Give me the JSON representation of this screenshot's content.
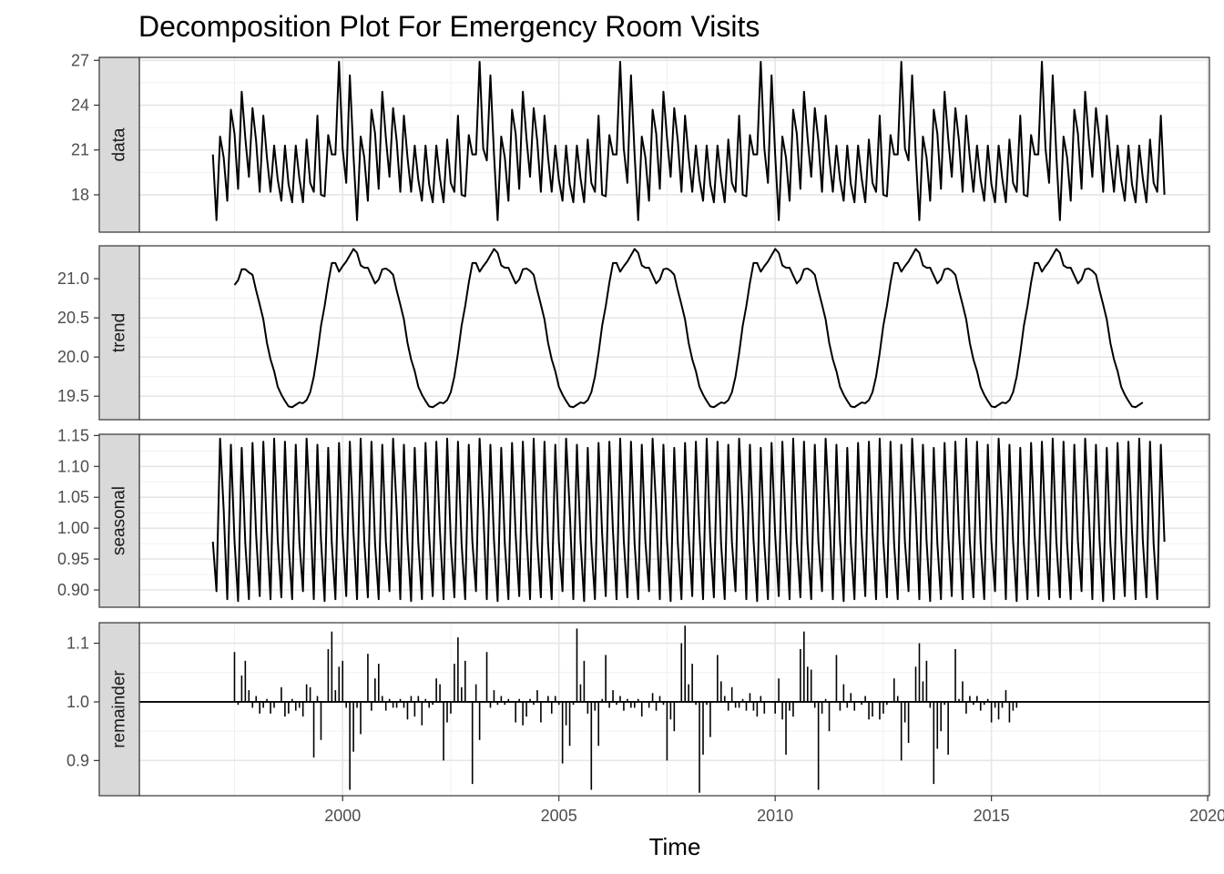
{
  "chart_data": {
    "type": "line",
    "title": "Decomposition Plot For Emergency Room Visits",
    "xlabel": "Time",
    "x_ticks": [
      2000,
      2005,
      2010,
      2015,
      2020
    ],
    "x_tick_labels": [
      "2000",
      "2005",
      "2010",
      "2015",
      "2020"
    ],
    "xlim": [
      1995.3,
      2020.04
    ],
    "grid": true,
    "panels": [
      {
        "name": "data",
        "type": "line",
        "ylim": [
          15.5,
          27.2
        ],
        "y_ticks": [
          18,
          21,
          24,
          27
        ],
        "y_tick_labels": [
          "18",
          "21",
          "24",
          "27"
        ],
        "x_start": 1997.0,
        "step": 0.0833333,
        "values": [
          20.7,
          16.3,
          21.9,
          20.5,
          17.6,
          23.7,
          22.1,
          18.4,
          24.9,
          21.8,
          19.2,
          23.8,
          21.6,
          18.2,
          23.3,
          20.5,
          18.2,
          21.3,
          19.0,
          17.6,
          21.3,
          18.7,
          17.5,
          21.3,
          19.1,
          17.5,
          21.7,
          18.8,
          18.2,
          23.3,
          18.0,
          17.9,
          22.0,
          20.7,
          20.7,
          26.9,
          21.1,
          18.8,
          26.0,
          20.7,
          16.3,
          21.9,
          20.5,
          17.6,
          23.7,
          22.1,
          18.4,
          24.9,
          21.8,
          19.2,
          23.8,
          21.6,
          18.2,
          23.3,
          20.5,
          18.2,
          21.3,
          19.0,
          17.6,
          21.3,
          18.7,
          17.5,
          21.3,
          19.1,
          17.5,
          21.7,
          18.8,
          18.2,
          23.3,
          18.0,
          17.9,
          22.0,
          20.7,
          20.7,
          26.9,
          21.1,
          20.3,
          26.0,
          20.7,
          16.3,
          21.9,
          20.5,
          17.6,
          23.7,
          22.1,
          18.4,
          24.9,
          21.8,
          19.2,
          23.8,
          21.6,
          18.2,
          23.3,
          20.5,
          18.2,
          21.3,
          19.0,
          17.6,
          21.3,
          18.7,
          17.5,
          21.3,
          19.1,
          17.5,
          21.7,
          18.8,
          18.2,
          23.3,
          18.0,
          17.9,
          22.0,
          20.7,
          20.7,
          26.9,
          21.1,
          18.8,
          26.0,
          20.7,
          16.3,
          21.9,
          20.5,
          17.6,
          23.7,
          22.1,
          18.4,
          24.9,
          21.8,
          19.2,
          23.8,
          21.6,
          18.2,
          23.3,
          20.5,
          18.2,
          21.3,
          19.0,
          17.6,
          21.3,
          18.7,
          17.5,
          21.3,
          19.1,
          17.5,
          21.7,
          18.8,
          18.2,
          23.3,
          18.0,
          17.9,
          22.0,
          20.7,
          20.7,
          26.9,
          21.1,
          18.8,
          26.0,
          20.7,
          16.3,
          21.9,
          20.5,
          17.6,
          23.7,
          22.1,
          18.4,
          24.9,
          21.8,
          19.2,
          23.8,
          21.6,
          18.2,
          23.3,
          20.5,
          18.2,
          21.3,
          19.0,
          17.6,
          21.3,
          18.7,
          17.5,
          21.3,
          19.1,
          17.5,
          21.7,
          18.8,
          18.2,
          23.3,
          18.0,
          17.9,
          22.0,
          20.7,
          20.7,
          26.9,
          21.1,
          20.3,
          26.0,
          20.7,
          16.3,
          21.9,
          20.5,
          17.6,
          23.7,
          22.1,
          18.4,
          24.9,
          21.8,
          19.2,
          23.8,
          21.6,
          18.2,
          23.3,
          20.5,
          18.2,
          21.3,
          19.0,
          17.6,
          21.3,
          18.7,
          17.5,
          21.3,
          19.1,
          17.5,
          21.7,
          18.8,
          18.2,
          23.3,
          18.0,
          17.9,
          22.0,
          20.7,
          20.7,
          26.9,
          21.1,
          18.8,
          26.0,
          20.7,
          16.3,
          21.9,
          20.5,
          17.6,
          23.7,
          22.1,
          18.4,
          24.9,
          21.8,
          19.2,
          23.8,
          21.6,
          18.2,
          23.3,
          20.5,
          18.2,
          21.3,
          19.0,
          17.6,
          21.3,
          18.7,
          17.5,
          21.3,
          19.1,
          17.5,
          21.7,
          18.8,
          18.2,
          23.3,
          18.0
        ]
      },
      {
        "name": "trend",
        "type": "line",
        "ylim": [
          19.2,
          21.42
        ],
        "y_ticks": [
          19.5,
          20.0,
          20.5,
          21.0
        ],
        "y_tick_labels": [
          "19.5",
          "20.0",
          "20.5",
          "21.0"
        ],
        "x_start": 1997.5,
        "step": 0.0833333,
        "values": [
          20.92,
          20.98,
          21.12,
          21.12,
          21.08,
          21.05,
          20.85,
          20.67,
          20.48,
          20.18,
          19.97,
          19.82,
          19.62,
          19.52,
          19.44,
          19.37,
          19.36,
          19.39,
          19.42,
          19.41,
          19.45,
          19.55,
          19.75,
          20.05,
          20.4,
          20.65,
          20.95,
          21.2,
          21.2,
          21.09,
          21.16,
          21.22,
          21.3,
          21.38,
          21.33,
          21.17,
          21.14,
          21.14,
          21.04,
          20.94,
          20.99,
          21.12,
          21.13,
          21.1,
          21.05,
          20.85,
          20.67,
          20.48,
          20.18,
          19.97,
          19.82,
          19.62,
          19.52,
          19.44,
          19.37,
          19.36,
          19.39,
          19.42,
          19.41,
          19.45,
          19.55,
          19.75,
          20.05,
          20.4,
          20.65,
          20.95,
          21.2,
          21.2,
          21.09,
          21.16,
          21.22,
          21.3,
          21.38,
          21.33,
          21.17,
          21.14,
          21.14,
          21.04,
          20.94,
          20.99,
          21.12,
          21.13,
          21.1,
          21.05,
          20.85,
          20.67,
          20.48,
          20.18,
          19.97,
          19.82,
          19.62,
          19.52,
          19.44,
          19.37,
          19.36,
          19.39,
          19.42,
          19.41,
          19.45,
          19.55,
          19.75,
          20.05,
          20.4,
          20.65,
          20.95,
          21.2,
          21.2,
          21.09,
          21.16,
          21.22,
          21.3,
          21.38,
          21.33,
          21.17,
          21.14,
          21.14,
          21.04,
          20.94,
          20.99,
          21.12,
          21.13,
          21.1,
          21.05,
          20.85,
          20.67,
          20.48,
          20.18,
          19.97,
          19.82,
          19.62,
          19.52,
          19.44,
          19.37,
          19.36,
          19.39,
          19.42,
          19.41,
          19.45,
          19.55,
          19.75,
          20.05,
          20.4,
          20.65,
          20.95,
          21.2,
          21.2,
          21.09,
          21.16,
          21.22,
          21.3,
          21.38,
          21.33,
          21.17,
          21.14,
          21.14,
          21.04,
          20.94,
          20.99,
          21.12,
          21.13,
          21.1,
          21.05,
          20.85,
          20.67,
          20.48,
          20.18,
          19.97,
          19.82,
          19.62,
          19.52,
          19.44,
          19.37,
          19.36,
          19.39,
          19.42,
          19.41,
          19.45,
          19.55,
          19.75,
          20.05,
          20.4,
          20.65,
          20.95,
          21.2,
          21.2,
          21.09,
          21.16,
          21.22,
          21.3,
          21.38,
          21.33,
          21.17,
          21.14,
          21.14,
          21.04,
          20.94,
          20.99,
          21.12,
          21.13,
          21.1,
          21.05,
          20.85,
          20.67,
          20.48,
          20.18,
          19.97,
          19.82,
          19.62,
          19.52,
          19.44,
          19.37,
          19.36,
          19.39,
          19.42,
          19.41,
          19.45,
          19.55,
          19.75,
          20.05,
          20.4,
          20.65,
          20.95,
          21.2,
          21.2,
          21.09,
          21.16,
          21.22,
          21.3,
          21.38,
          21.33,
          21.17,
          21.14,
          21.14,
          21.04,
          20.94,
          20.99,
          21.12,
          21.13,
          21.1,
          21.05,
          20.85,
          20.67,
          20.48,
          20.18,
          19.97,
          19.82,
          19.62,
          19.52,
          19.44,
          19.37,
          19.36,
          19.39,
          19.42
        ]
      },
      {
        "name": "seasonal",
        "type": "line",
        "ylim": [
          0.872,
          1.152
        ],
        "y_ticks": [
          0.9,
          0.95,
          1.0,
          1.05,
          1.1,
          1.15
        ],
        "y_tick_labels": [
          "0.90",
          "0.95",
          "1.00",
          "1.05",
          "1.10",
          "1.15"
        ],
        "x_start": 1997.0,
        "step": 0.0833333,
        "values": [
          0.978,
          0.898,
          1.145,
          1.03,
          0.885,
          1.135,
          0.98,
          0.882,
          1.13,
          0.975,
          0.885,
          1.138,
          0.99,
          0.89,
          1.14,
          0.995,
          0.885,
          1.145,
          0.98,
          0.888,
          1.14,
          0.975,
          0.885,
          1.135,
          0.978,
          0.898,
          1.145,
          1.03,
          0.885,
          1.135,
          0.98,
          0.882,
          1.13,
          0.975,
          0.885,
          1.138,
          0.99,
          0.89,
          1.14,
          0.995,
          0.885,
          1.145,
          0.98,
          0.888,
          1.14,
          0.975,
          0.885,
          1.135,
          0.978,
          0.898,
          1.145,
          1.03,
          0.885,
          1.135,
          0.98,
          0.882,
          1.13,
          0.975,
          0.885,
          1.138,
          0.99,
          0.89,
          1.14,
          0.995,
          0.885,
          1.145,
          0.98,
          0.888,
          1.14,
          0.975,
          0.885,
          1.135,
          0.978,
          0.898,
          1.145,
          1.03,
          0.885,
          1.135,
          0.98,
          0.882,
          1.13,
          0.975,
          0.885,
          1.138,
          0.99,
          0.89,
          1.14,
          0.995,
          0.885,
          1.145,
          0.98,
          0.888,
          1.14,
          0.975,
          0.885,
          1.135,
          0.978,
          0.898,
          1.145,
          1.03,
          0.885,
          1.135,
          0.98,
          0.882,
          1.13,
          0.975,
          0.885,
          1.138,
          0.99,
          0.89,
          1.14,
          0.995,
          0.885,
          1.145,
          0.98,
          0.888,
          1.14,
          0.975,
          0.885,
          1.135,
          0.978,
          0.898,
          1.145,
          1.03,
          0.885,
          1.135,
          0.98,
          0.882,
          1.13,
          0.975,
          0.885,
          1.138,
          0.99,
          0.89,
          1.14,
          0.995,
          0.885,
          1.145,
          0.98,
          0.888,
          1.14,
          0.975,
          0.885,
          1.135,
          0.978,
          0.898,
          1.145,
          1.03,
          0.885,
          1.135,
          0.98,
          0.882,
          1.13,
          0.975,
          0.885,
          1.138,
          0.99,
          0.89,
          1.14,
          0.995,
          0.885,
          1.145,
          0.98,
          0.888,
          1.14,
          0.975,
          0.885,
          1.135,
          0.978,
          0.898,
          1.145,
          1.03,
          0.885,
          1.135,
          0.98,
          0.882,
          1.13,
          0.975,
          0.885,
          1.138,
          0.99,
          0.89,
          1.14,
          0.995,
          0.885,
          1.145,
          0.98,
          0.888,
          1.14,
          0.975,
          0.885,
          1.135,
          0.978,
          0.898,
          1.145,
          1.03,
          0.885,
          1.135,
          0.98,
          0.882,
          1.13,
          0.975,
          0.885,
          1.138,
          0.99,
          0.89,
          1.14,
          0.995,
          0.885,
          1.145,
          0.98,
          0.888,
          1.14,
          0.975,
          0.885,
          1.135,
          0.978,
          0.898,
          1.145,
          1.03,
          0.885,
          1.135,
          0.98,
          0.882,
          1.13,
          0.975,
          0.885,
          1.138,
          0.99,
          0.89,
          1.14,
          0.995,
          0.885,
          1.145,
          0.98,
          0.888,
          1.14,
          0.975,
          0.885,
          1.135,
          0.978,
          0.898,
          1.145,
          1.03,
          0.885,
          1.135,
          0.98,
          0.882,
          1.13,
          0.975,
          0.885,
          1.138,
          0.99,
          0.89,
          1.14,
          0.995,
          0.885,
          1.145,
          0.98,
          0.888,
          1.14,
          0.975,
          0.885,
          1.135,
          0.978
        ]
      },
      {
        "name": "remainder",
        "type": "bar",
        "baseline": 1.0,
        "ylim": [
          0.84,
          1.135
        ],
        "y_ticks": [
          0.9,
          1.0,
          1.1
        ],
        "y_tick_labels": [
          "0.9",
          "1.0",
          "1.1"
        ],
        "x_start": 1997.5,
        "step": 0.0833333,
        "values": [
          1.085,
          0.995,
          1.045,
          1.07,
          1.02,
          0.99,
          1.01,
          0.98,
          0.99,
          1.005,
          0.98,
          0.99,
          1.0,
          1.025,
          0.975,
          0.98,
          1.005,
          0.985,
          0.99,
          0.975,
          1.03,
          1.025,
          0.905,
          1.01,
          0.935,
          1.0,
          1.09,
          1.12,
          1.02,
          1.06,
          1.07,
          0.99,
          0.85,
          0.915,
          0.99,
          0.945,
          1.0,
          1.082,
          0.985,
          1.04,
          1.065,
          1.01,
          0.985,
          1.005,
          0.99,
          0.99,
          1.005,
          0.99,
          0.97,
          1.01,
          0.975,
          1.01,
          0.96,
          1.005,
          0.99,
          0.995,
          1.04,
          1.03,
          0.9,
          0.965,
          0.98,
          1.065,
          1.11,
          1.025,
          1.07,
          1.0,
          0.86,
          1.03,
          0.935,
          1.0,
          1.085,
          0.99,
          1.02,
          0.995,
          1.01,
          0.995,
          1.005,
          1.0,
          0.965,
          1.005,
          0.96,
          0.975,
          1.005,
          0.995,
          1.02,
          0.965,
          1.0,
          1.01,
          0.98,
          1.01,
          0.995,
          0.895,
          0.96,
          0.925,
          0.995,
          1.125,
          1.03,
          1.07,
          0.98,
          0.85,
          0.985,
          0.925,
          1.005,
          1.08,
          0.99,
          1.02,
          0.995,
          1.01,
          0.985,
          1.005,
          0.99,
          0.99,
          1.005,
          0.975,
          1.0,
          0.99,
          1.015,
          0.985,
          1.01,
          0.995,
          0.9,
          0.97,
          0.95,
          1.0,
          1.1,
          1.13,
          1.03,
          1.065,
          0.995,
          0.845,
          0.91,
          0.995,
          0.94,
          1.0,
          1.08,
          1.035,
          1.01,
          0.985,
          1.025,
          0.99,
          0.99,
          1.005,
          0.985,
          1.015,
          0.985,
          0.975,
          1.01,
          0.98,
          1.0,
          1.0,
          0.98,
          1.04,
          0.97,
          0.91,
          0.985,
          0.975,
          1.0,
          1.09,
          1.12,
          1.06,
          1.055,
          0.99,
          0.85,
          0.98,
          1.005,
          0.95,
          1.0,
          1.08,
          0.985,
          1.03,
          0.99,
          1.015,
          0.985,
          1.0,
          0.995,
          1.01,
          0.97,
          0.975,
          1.0,
          0.97,
          0.98,
          0.995,
          1.0,
          1.04,
          1.01,
          0.9,
          0.965,
          0.93,
          1.0,
          1.06,
          1.1,
          1.035,
          1.07,
          0.99,
          0.86,
          0.92,
          0.95,
          0.995,
          0.91,
          1.0,
          1.09,
          1.005,
          1.035,
          0.98,
          1.01,
          0.995,
          1.01,
          0.985,
          0.995,
          1.005,
          0.965,
          0.99,
          0.97,
          0.99,
          1.02,
          0.965,
          0.985,
          0.99
        ]
      }
    ]
  }
}
